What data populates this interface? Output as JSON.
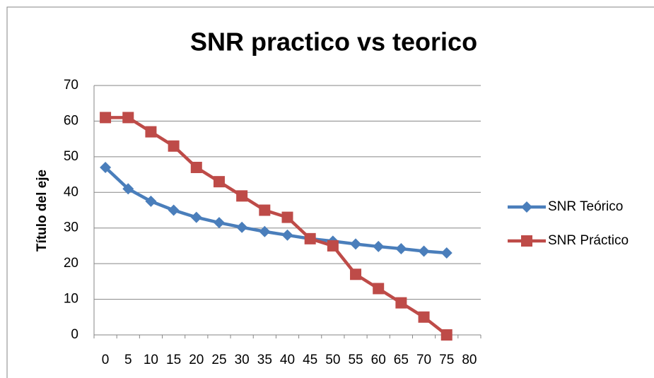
{
  "chart_data": {
    "type": "line",
    "title": "SNR practico vs teorico",
    "y_label": "Título del eje",
    "categories": [
      "0",
      "5",
      "10",
      "15",
      "20",
      "25",
      "30",
      "35",
      "40",
      "45",
      "50",
      "55",
      "60",
      "65",
      "70",
      "75",
      "80"
    ],
    "series": [
      {
        "name": "SNR Teórico",
        "color": "#4a7ebb",
        "marker": "diamond",
        "values": [
          47,
          41,
          37.5,
          35,
          33,
          31.5,
          30.2,
          29,
          28,
          27,
          26.3,
          25.5,
          24.8,
          24.2,
          23.5,
          23,
          null
        ]
      },
      {
        "name": "SNR Práctico",
        "color": "#be4b48",
        "marker": "square",
        "values": [
          61,
          61,
          57,
          53,
          47,
          43,
          39,
          35,
          33,
          27,
          25,
          17,
          13,
          9,
          5,
          0,
          null
        ]
      }
    ],
    "ylim": [
      0,
      70
    ],
    "yticks": [
      0,
      10,
      20,
      30,
      40,
      50,
      60,
      70
    ],
    "grid": true,
    "legend": "right"
  }
}
